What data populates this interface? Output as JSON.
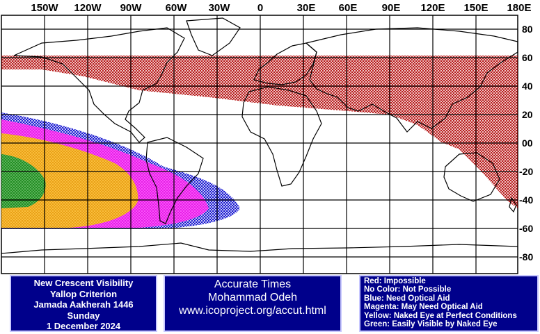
{
  "map": {
    "lon_labels": [
      "150W",
      "120W",
      "90W",
      "60W",
      "30W",
      "0",
      "30E",
      "60E",
      "90E",
      "120E",
      "150E",
      "180E"
    ],
    "lat_labels": [
      "80",
      "60",
      "40",
      "20",
      "00",
      "-20",
      "-40",
      "-60",
      "-80"
    ],
    "colors": {
      "red": "#b00000",
      "blue": "#0000cc",
      "magenta": "#ee00ee",
      "yellow": "#ffbb00",
      "green": "#008800",
      "land": "#000000",
      "grid": "#000000"
    },
    "regions": {
      "red": "Impossible (approx. 20S to 60N band, east of 180W)",
      "blue": "Need Optical Aid (eastern Pacific & South America)",
      "magenta": "May Need Optical Aid",
      "yellow": "Naked Eye at Perfect Conditions",
      "green": "Easily Visible by Naked Eye"
    }
  },
  "info_left": {
    "line1": "New Crescent Visibility",
    "line2": "Yallop Criterion",
    "line3": "Jamada Aakherah 1446",
    "line4": "Sunday",
    "line5": "1 December 2024"
  },
  "info_mid": {
    "line1": "Accurate Times",
    "line2": "Mohammad Odeh",
    "line3": "www.icoproject.org/accut.html"
  },
  "legend": {
    "red": "Red: Impossible",
    "none": "No Color: Not Possible",
    "blue": "Blue: Need Optical Aid",
    "magenta": "Magenta: May Need Optical Aid",
    "yellow": "Yellow: Naked Eye at Perfect Conditions",
    "green": "Green: Easily Visible by Naked Eye"
  }
}
